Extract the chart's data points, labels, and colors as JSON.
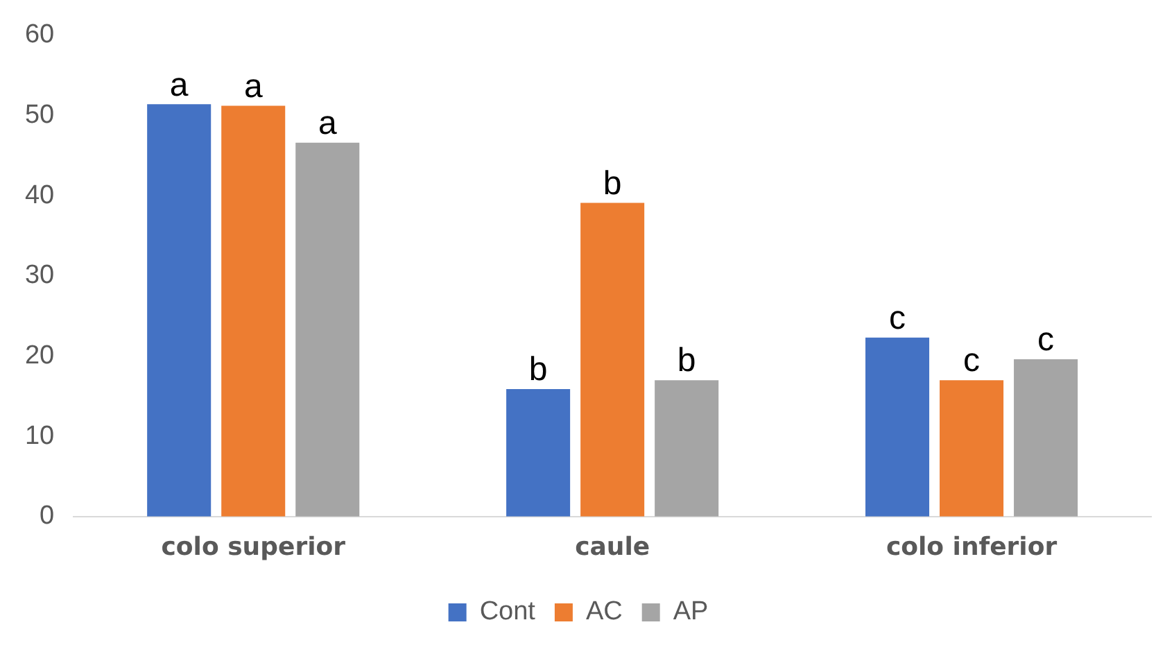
{
  "chart_data": {
    "type": "bar",
    "categories": [
      "colo superior",
      "caule",
      "colo inferior"
    ],
    "series": [
      {
        "name": "Cont",
        "color": "#4472c4",
        "values": [
          51.4,
          15.9,
          22.3
        ],
        "value_labels": [
          "a",
          "b",
          "c"
        ]
      },
      {
        "name": "AC",
        "color": "#ed7d31",
        "values": [
          51.2,
          39.1,
          17.0
        ],
        "value_labels": [
          "a",
          "b",
          "c"
        ]
      },
      {
        "name": "AP",
        "color": "#a5a5a5",
        "values": [
          46.6,
          17.0,
          19.6
        ],
        "value_labels": [
          "a",
          "b",
          "c"
        ]
      }
    ],
    "ylim": [
      0,
      60
    ],
    "yticks": [
      0,
      10,
      20,
      30,
      40,
      50,
      60
    ],
    "grid": false,
    "legend": "bottom"
  }
}
